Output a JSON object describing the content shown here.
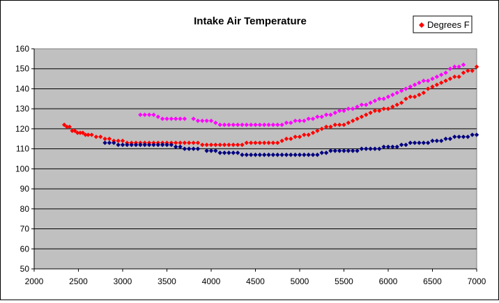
{
  "chart_data": {
    "type": "scatter",
    "title": "Intake Air Temperature",
    "xlabel": "",
    "ylabel": "",
    "xlim": [
      2000,
      7000
    ],
    "ylim": [
      50,
      160
    ],
    "x_ticks": [
      2000,
      2500,
      3000,
      3500,
      4000,
      4500,
      5000,
      5500,
      6000,
      6500,
      7000
    ],
    "y_ticks": [
      50,
      60,
      70,
      80,
      90,
      100,
      110,
      120,
      130,
      140,
      150,
      160
    ],
    "grid": "horizontal major lines",
    "plot_background": "#c0c0c0",
    "legend": {
      "placement": "top-right",
      "entries": [
        "Degrees F"
      ]
    },
    "series": [
      {
        "name": "Degrees F",
        "color": "#ff0000",
        "marker": "diamond",
        "points": [
          [
            2340,
            122
          ],
          [
            2370,
            121
          ],
          [
            2400,
            121
          ],
          [
            2430,
            119
          ],
          [
            2460,
            119
          ],
          [
            2490,
            118
          ],
          [
            2520,
            118
          ],
          [
            2550,
            118
          ],
          [
            2580,
            117
          ],
          [
            2610,
            117
          ],
          [
            2650,
            117
          ],
          [
            2700,
            116
          ],
          [
            2750,
            116
          ],
          [
            2800,
            115
          ],
          [
            2850,
            115
          ],
          [
            2900,
            114
          ],
          [
            2950,
            114
          ],
          [
            3000,
            114
          ],
          [
            3050,
            113
          ],
          [
            3100,
            113
          ],
          [
            3150,
            113
          ],
          [
            3200,
            113
          ],
          [
            3250,
            113
          ],
          [
            3300,
            113
          ],
          [
            3350,
            113
          ],
          [
            3400,
            113
          ],
          [
            3450,
            113
          ],
          [
            3500,
            113
          ],
          [
            3550,
            113
          ],
          [
            3600,
            113
          ],
          [
            3650,
            113
          ],
          [
            3700,
            113
          ],
          [
            3750,
            113
          ],
          [
            3800,
            113
          ],
          [
            3850,
            113
          ],
          [
            3900,
            112
          ],
          [
            3950,
            112
          ],
          [
            4000,
            112
          ],
          [
            4050,
            112
          ],
          [
            4100,
            112
          ],
          [
            4150,
            112
          ],
          [
            4200,
            112
          ],
          [
            4250,
            112
          ],
          [
            4300,
            112
          ],
          [
            4350,
            112
          ],
          [
            4400,
            113
          ],
          [
            4450,
            113
          ],
          [
            4500,
            113
          ],
          [
            4550,
            113
          ],
          [
            4600,
            113
          ],
          [
            4650,
            113
          ],
          [
            4700,
            113
          ],
          [
            4750,
            113
          ],
          [
            4800,
            114
          ],
          [
            4850,
            115
          ],
          [
            4900,
            115
          ],
          [
            4950,
            116
          ],
          [
            5000,
            116
          ],
          [
            5050,
            117
          ],
          [
            5100,
            117
          ],
          [
            5150,
            118
          ],
          [
            5200,
            119
          ],
          [
            5250,
            120
          ],
          [
            5300,
            121
          ],
          [
            5350,
            121
          ],
          [
            5400,
            122
          ],
          [
            5450,
            122
          ],
          [
            5500,
            122
          ],
          [
            5550,
            123
          ],
          [
            5600,
            124
          ],
          [
            5650,
            125
          ],
          [
            5700,
            126
          ],
          [
            5750,
            127
          ],
          [
            5800,
            128
          ],
          [
            5850,
            129
          ],
          [
            5900,
            129
          ],
          [
            5950,
            130
          ],
          [
            6000,
            130
          ],
          [
            6050,
            131
          ],
          [
            6100,
            132
          ],
          [
            6150,
            133
          ],
          [
            6200,
            135
          ],
          [
            6250,
            136
          ],
          [
            6300,
            136
          ],
          [
            6350,
            137
          ],
          [
            6400,
            138
          ],
          [
            6450,
            140
          ],
          [
            6500,
            141
          ],
          [
            6550,
            142
          ],
          [
            6600,
            143
          ],
          [
            6650,
            144
          ],
          [
            6700,
            145
          ],
          [
            6750,
            146
          ],
          [
            6800,
            146
          ],
          [
            6850,
            148
          ],
          [
            6900,
            149
          ],
          [
            6950,
            149
          ],
          [
            7000,
            151
          ]
        ]
      },
      {
        "color": "#ff00ff",
        "marker": "diamond",
        "points": [
          [
            3200,
            127
          ],
          [
            3250,
            127
          ],
          [
            3300,
            127
          ],
          [
            3350,
            127
          ],
          [
            3400,
            126
          ],
          [
            3450,
            125
          ],
          [
            3500,
            125
          ],
          [
            3550,
            125
          ],
          [
            3600,
            125
          ],
          [
            3650,
            125
          ],
          [
            3700,
            125
          ],
          [
            3800,
            125
          ],
          [
            3850,
            124
          ],
          [
            3900,
            124
          ],
          [
            3950,
            124
          ],
          [
            4000,
            124
          ],
          [
            4050,
            123
          ],
          [
            4100,
            122
          ],
          [
            4150,
            122
          ],
          [
            4200,
            122
          ],
          [
            4250,
            122
          ],
          [
            4300,
            122
          ],
          [
            4350,
            122
          ],
          [
            4400,
            122
          ],
          [
            4450,
            122
          ],
          [
            4500,
            122
          ],
          [
            4550,
            122
          ],
          [
            4600,
            122
          ],
          [
            4650,
            122
          ],
          [
            4700,
            122
          ],
          [
            4750,
            122
          ],
          [
            4800,
            122
          ],
          [
            4850,
            123
          ],
          [
            4900,
            123
          ],
          [
            4950,
            124
          ],
          [
            5000,
            124
          ],
          [
            5050,
            124
          ],
          [
            5100,
            125
          ],
          [
            5150,
            125
          ],
          [
            5200,
            126
          ],
          [
            5250,
            126
          ],
          [
            5300,
            127
          ],
          [
            5350,
            127
          ],
          [
            5400,
            128
          ],
          [
            5450,
            129
          ],
          [
            5500,
            129
          ],
          [
            5550,
            130
          ],
          [
            5600,
            130
          ],
          [
            5650,
            131
          ],
          [
            5700,
            132
          ],
          [
            5750,
            132
          ],
          [
            5800,
            133
          ],
          [
            5850,
            134
          ],
          [
            5900,
            135
          ],
          [
            5950,
            135
          ],
          [
            6000,
            136
          ],
          [
            6050,
            137
          ],
          [
            6100,
            138
          ],
          [
            6150,
            139
          ],
          [
            6200,
            140
          ],
          [
            6250,
            141
          ],
          [
            6300,
            142
          ],
          [
            6350,
            143
          ],
          [
            6400,
            144
          ],
          [
            6450,
            144
          ],
          [
            6500,
            145
          ],
          [
            6550,
            146
          ],
          [
            6600,
            147
          ],
          [
            6650,
            148
          ],
          [
            6700,
            150
          ],
          [
            6750,
            151
          ],
          [
            6800,
            151
          ],
          [
            6850,
            152
          ]
        ]
      },
      {
        "color": "#000080",
        "marker": "diamond",
        "points": [
          [
            2800,
            113
          ],
          [
            2850,
            113
          ],
          [
            2900,
            113
          ],
          [
            2950,
            112
          ],
          [
            3000,
            112
          ],
          [
            3050,
            112
          ],
          [
            3100,
            112
          ],
          [
            3150,
            112
          ],
          [
            3200,
            112
          ],
          [
            3250,
            112
          ],
          [
            3300,
            112
          ],
          [
            3350,
            112
          ],
          [
            3400,
            112
          ],
          [
            3450,
            112
          ],
          [
            3500,
            112
          ],
          [
            3550,
            112
          ],
          [
            3600,
            111
          ],
          [
            3650,
            111
          ],
          [
            3700,
            110
          ],
          [
            3750,
            110
          ],
          [
            3800,
            110
          ],
          [
            3850,
            110
          ],
          [
            3950,
            109
          ],
          [
            4000,
            109
          ],
          [
            4050,
            109
          ],
          [
            4100,
            108
          ],
          [
            4150,
            108
          ],
          [
            4200,
            108
          ],
          [
            4250,
            108
          ],
          [
            4300,
            108
          ],
          [
            4350,
            107
          ],
          [
            4400,
            107
          ],
          [
            4450,
            107
          ],
          [
            4500,
            107
          ],
          [
            4550,
            107
          ],
          [
            4600,
            107
          ],
          [
            4650,
            107
          ],
          [
            4700,
            107
          ],
          [
            4750,
            107
          ],
          [
            4800,
            107
          ],
          [
            4850,
            107
          ],
          [
            4900,
            107
          ],
          [
            4950,
            107
          ],
          [
            5000,
            107
          ],
          [
            5050,
            107
          ],
          [
            5100,
            107
          ],
          [
            5150,
            107
          ],
          [
            5200,
            107
          ],
          [
            5250,
            108
          ],
          [
            5300,
            108
          ],
          [
            5350,
            109
          ],
          [
            5400,
            109
          ],
          [
            5450,
            109
          ],
          [
            5500,
            109
          ],
          [
            5550,
            109
          ],
          [
            5600,
            109
          ],
          [
            5650,
            109
          ],
          [
            5700,
            110
          ],
          [
            5750,
            110
          ],
          [
            5800,
            110
          ],
          [
            5850,
            110
          ],
          [
            5900,
            110
          ],
          [
            5950,
            111
          ],
          [
            6000,
            111
          ],
          [
            6050,
            111
          ],
          [
            6100,
            111
          ],
          [
            6150,
            112
          ],
          [
            6200,
            112
          ],
          [
            6250,
            113
          ],
          [
            6300,
            113
          ],
          [
            6350,
            113
          ],
          [
            6400,
            113
          ],
          [
            6450,
            113
          ],
          [
            6500,
            114
          ],
          [
            6550,
            114
          ],
          [
            6600,
            114
          ],
          [
            6650,
            115
          ],
          [
            6700,
            115
          ],
          [
            6750,
            116
          ],
          [
            6800,
            116
          ],
          [
            6850,
            116
          ],
          [
            6900,
            116
          ],
          [
            6950,
            117
          ],
          [
            7000,
            117
          ]
        ]
      }
    ]
  }
}
